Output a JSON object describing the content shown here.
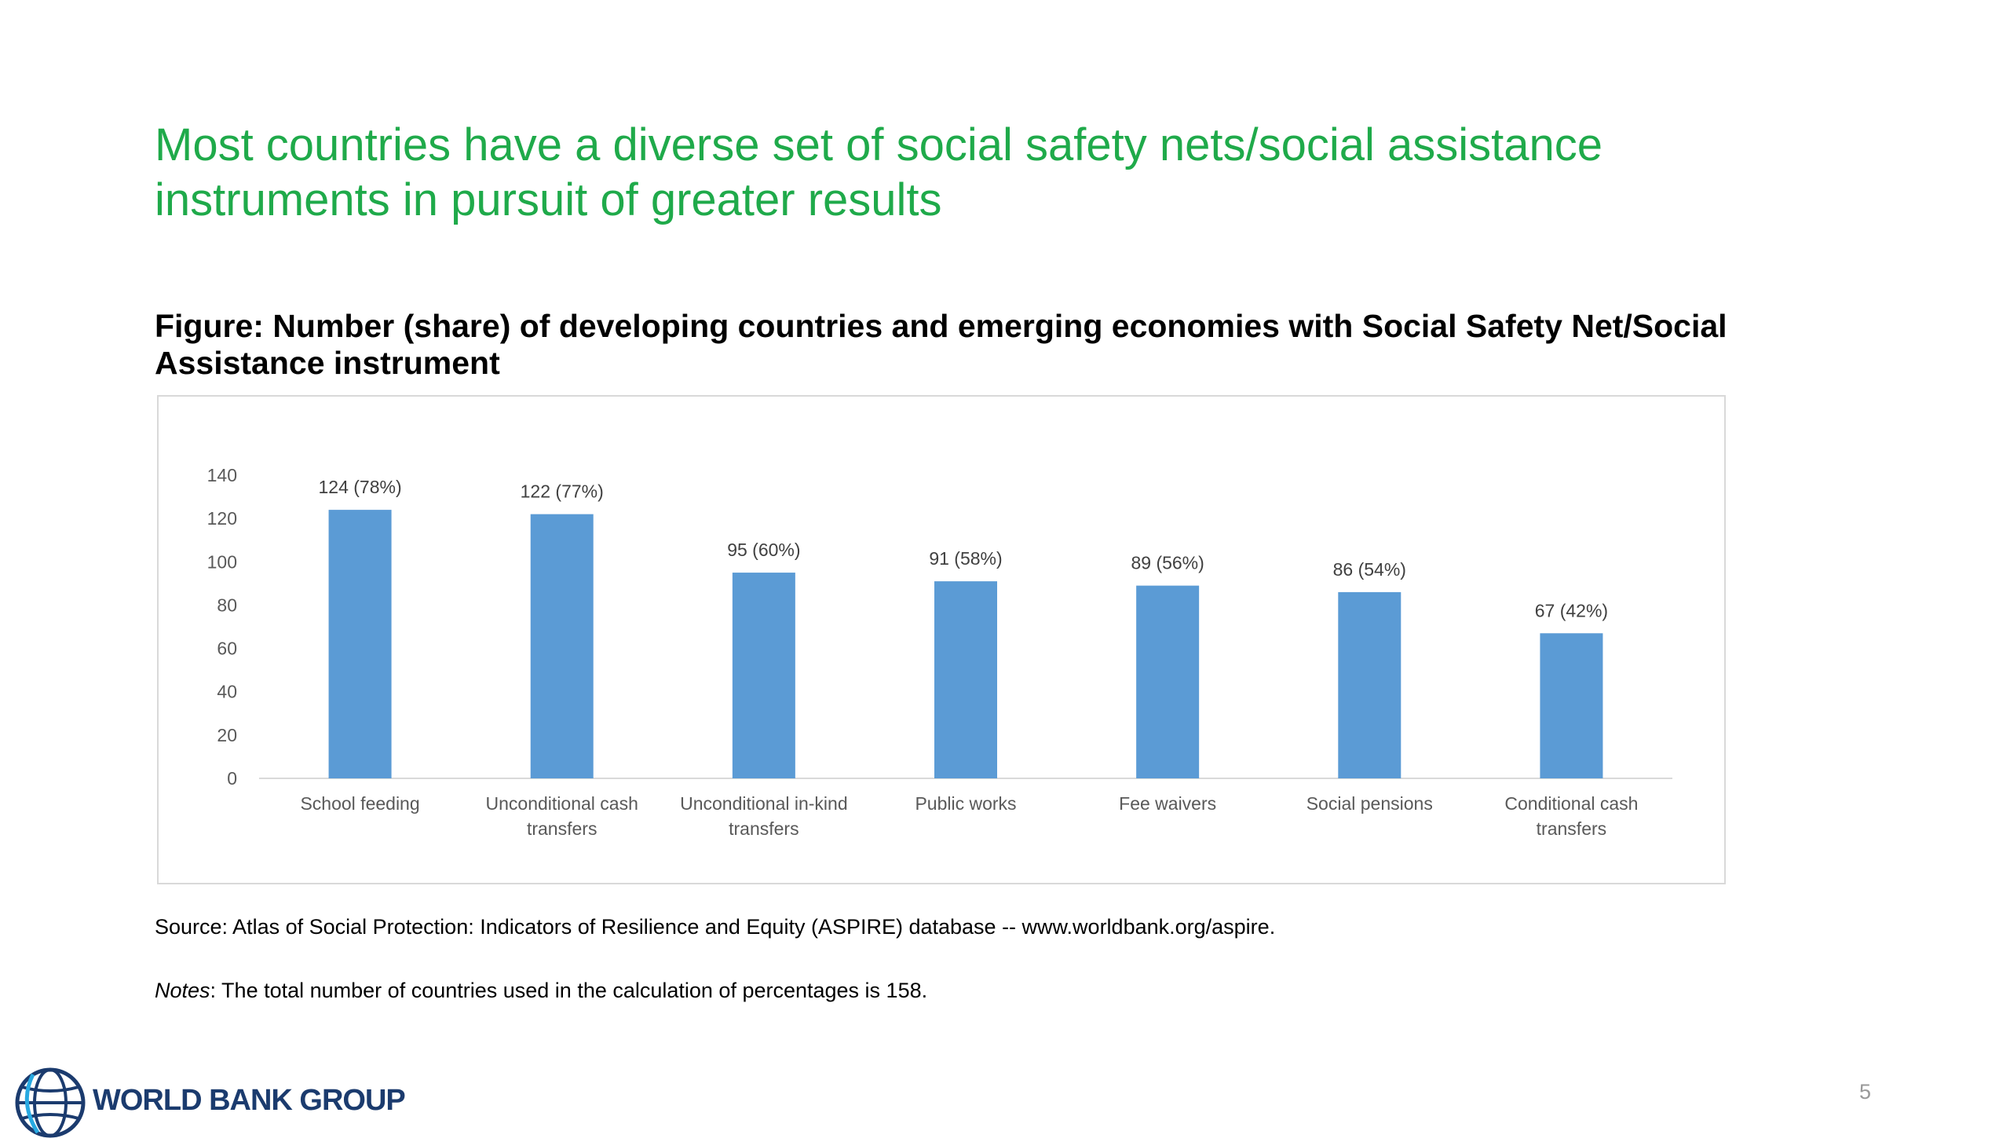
{
  "slide": {
    "headline": "Most countries have a diverse set of social safety nets/social assistance instruments in pursuit of greater results",
    "figure_title": "Figure: Number (share) of developing countries and emerging economies with Social Safety Net/Social Assistance instrument",
    "source": "Source: Atlas of Social Protection: Indicators of Resilience and Equity (ASPIRE) database -- www.worldbank.org/aspire.",
    "notes_label": "Notes",
    "notes_text": ": The total number of countries used in the calculation of percentages is 158.",
    "logo_text": "WORLD BANK GROUP",
    "page_number": "5"
  },
  "colors": {
    "headline": "#1faa4a",
    "bar": "#5b9bd5",
    "logo": "#1b3b6e"
  },
  "chart_data": {
    "type": "bar",
    "categories": [
      [
        "School feeding"
      ],
      [
        "Unconditional cash",
        "transfers"
      ],
      [
        "Unconditional in-kind",
        "transfers"
      ],
      [
        "Public works"
      ],
      [
        "Fee waivers"
      ],
      [
        "Social pensions"
      ],
      [
        "Conditional cash",
        "transfers"
      ]
    ],
    "values": [
      124,
      122,
      95,
      91,
      89,
      86,
      67
    ],
    "data_labels": [
      "124 (78%)",
      "122 (77%)",
      "95 (60%)",
      "91 (58%)",
      "89 (56%)",
      "86 (54%)",
      "67 (42%)"
    ],
    "y_ticks": [
      0,
      20,
      40,
      60,
      80,
      100,
      120,
      140
    ],
    "ylim": [
      0,
      140
    ],
    "grid": false,
    "legend": "none"
  }
}
